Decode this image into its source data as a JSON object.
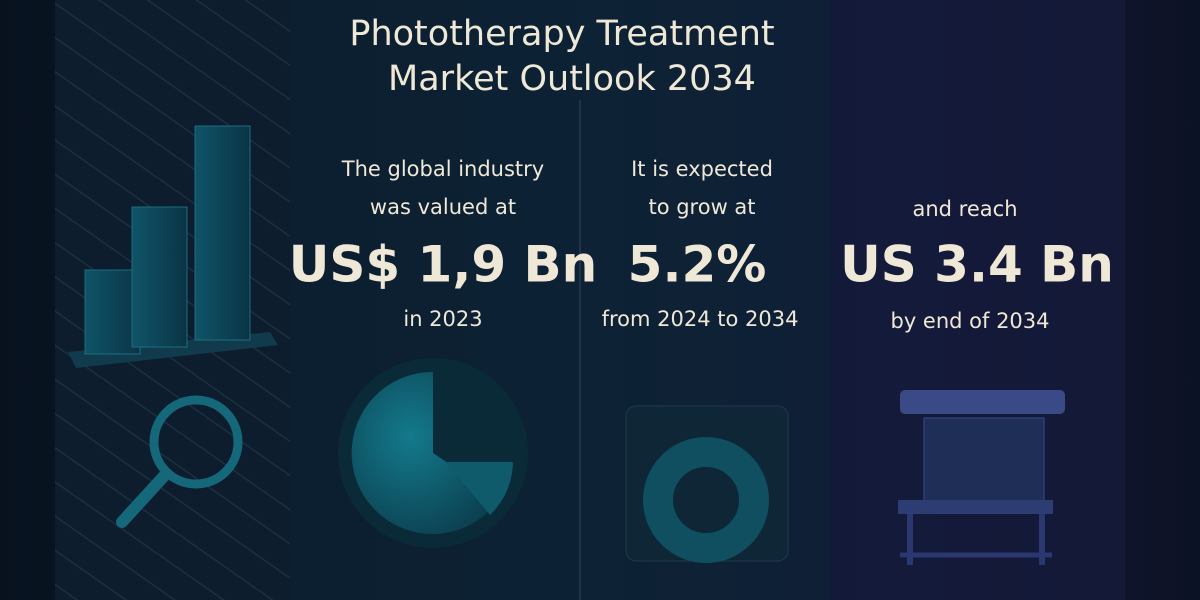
{
  "header": {
    "title_lines": [
      "Phototherapy Treatment",
      "Market Outlook 2034"
    ]
  },
  "stats": [
    {
      "lines": [
        "The global industry",
        "was valued at"
      ],
      "value": "US$ 1,9 Bn",
      "note": "in 2023"
    },
    {
      "lines": [
        "It is expected",
        "to grow at"
      ],
      "value": "5.2%",
      "note": "from 2024 to 2034"
    },
    {
      "lines": [
        "and reach"
      ],
      "value": "US 3.4 Bn",
      "note": "by end of 2034"
    }
  ]
}
